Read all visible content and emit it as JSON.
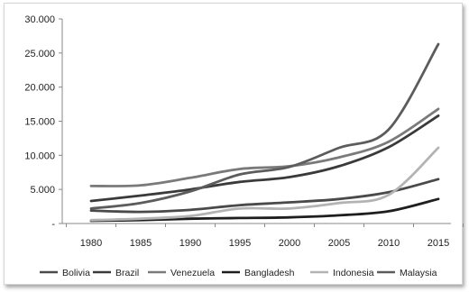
{
  "chart_data": {
    "type": "line",
    "x": [
      1980,
      1985,
      1990,
      1995,
      2000,
      2005,
      2010,
      2015
    ],
    "x_tick_labels": [
      "1980",
      "1985",
      "1990",
      "1995",
      "2000",
      "2005",
      "2010",
      "2015"
    ],
    "y_tick_labels": [
      "-",
      "5.000",
      "10.000",
      "15.000",
      "20.000",
      "25.000",
      "30.000"
    ],
    "ylim": [
      0,
      30000
    ],
    "grid": false,
    "legend_position": "bottom",
    "series": [
      {
        "name": "Bolivia",
        "color": "#4a4a4a",
        "values": [
          1900,
          1700,
          2000,
          2700,
          3100,
          3600,
          4600,
          6500
        ]
      },
      {
        "name": "Brazil",
        "color": "#3a3a3a",
        "values": [
          3300,
          4100,
          5000,
          6100,
          6800,
          8400,
          11200,
          15800
        ]
      },
      {
        "name": "Venezuela",
        "color": "#7a7a7a",
        "values": [
          5500,
          5600,
          6700,
          8000,
          8400,
          9700,
          12000,
          16800
        ]
      },
      {
        "name": "Bangladesh",
        "color": "#1e1e1e",
        "values": [
          400,
          500,
          700,
          800,
          900,
          1200,
          1800,
          3600
        ]
      },
      {
        "name": "Indonesia",
        "color": "#b3b3b3",
        "values": [
          500,
          700,
          1100,
          2200,
          2200,
          3000,
          4200,
          11100
        ]
      },
      {
        "name": "Malaysia",
        "color": "#5c5c5c",
        "values": [
          2200,
          3000,
          4700,
          7200,
          8300,
          11100,
          13800,
          26300
        ]
      }
    ]
  }
}
